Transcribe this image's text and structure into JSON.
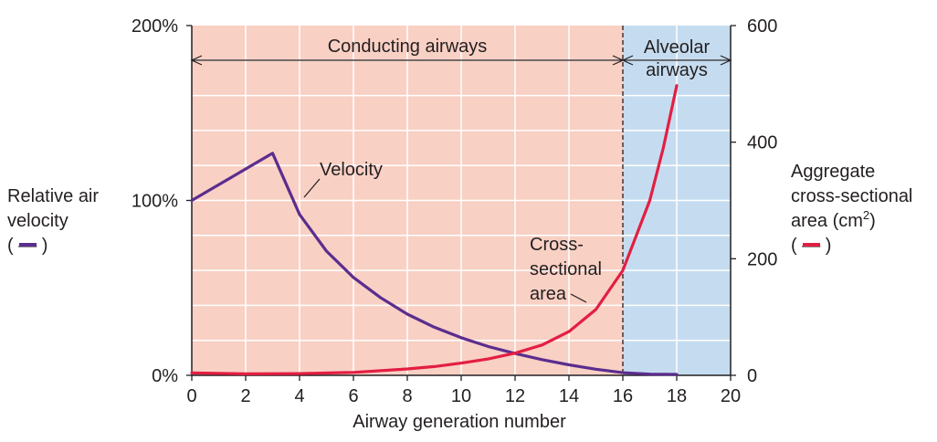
{
  "chart_data": {
    "type": "line",
    "xlabel": "Airway generation number",
    "x_ticks": [
      "0",
      "2",
      "4",
      "6",
      "8",
      "10",
      "12",
      "14",
      "16",
      "18",
      "20"
    ],
    "xlim": [
      0,
      20
    ],
    "y_left": {
      "label_lines": [
        "Relative air",
        "velocity",
        "( — )"
      ],
      "ticks": [
        "0%",
        "100%",
        "200%"
      ],
      "lim": [
        0,
        200
      ]
    },
    "y_right": {
      "label_lines": [
        "Aggregate",
        "cross-sectional",
        "area (cm",
        "2",
        ")",
        "( — )"
      ],
      "ticks": [
        "0",
        "200",
        "400",
        "600"
      ],
      "lim": [
        0,
        600
      ]
    },
    "grid": true,
    "regions": [
      {
        "label": "Conducting airways",
        "x_range": [
          0,
          16
        ],
        "color": "#f9d0c4"
      },
      {
        "label_lines": [
          "Alveolar",
          "airways"
        ],
        "x_range": [
          16,
          20
        ],
        "color": "#c5dcf0"
      }
    ],
    "series": [
      {
        "name": "Velocity",
        "axis": "left",
        "color": "#5b2d8e",
        "points": [
          [
            0,
            100
          ],
          [
            1,
            109
          ],
          [
            2,
            118
          ],
          [
            3,
            127
          ],
          [
            4,
            92
          ],
          [
            5,
            71
          ],
          [
            6,
            56
          ],
          [
            7,
            44.5
          ],
          [
            8,
            35
          ],
          [
            9,
            27.5
          ],
          [
            10,
            21.5
          ],
          [
            11,
            16.5
          ],
          [
            12,
            12.5
          ],
          [
            13,
            9
          ],
          [
            14,
            6
          ],
          [
            15,
            3.5
          ],
          [
            16,
            1.5
          ],
          [
            17,
            0.7
          ],
          [
            18,
            0.5
          ]
        ]
      },
      {
        "name_lines": [
          "Cross-",
          "sectional",
          "area"
        ],
        "axis": "right",
        "color": "#e31e43",
        "points": [
          [
            0,
            4
          ],
          [
            2,
            2.5
          ],
          [
            4,
            3
          ],
          [
            6,
            5
          ],
          [
            8,
            11
          ],
          [
            9,
            15
          ],
          [
            10,
            21
          ],
          [
            11,
            28
          ],
          [
            12,
            38
          ],
          [
            13,
            52
          ],
          [
            14,
            75
          ],
          [
            15,
            113
          ],
          [
            16,
            180
          ],
          [
            16.5,
            240
          ],
          [
            17,
            300
          ],
          [
            17.5,
            390
          ],
          [
            18,
            497
          ]
        ]
      }
    ]
  }
}
